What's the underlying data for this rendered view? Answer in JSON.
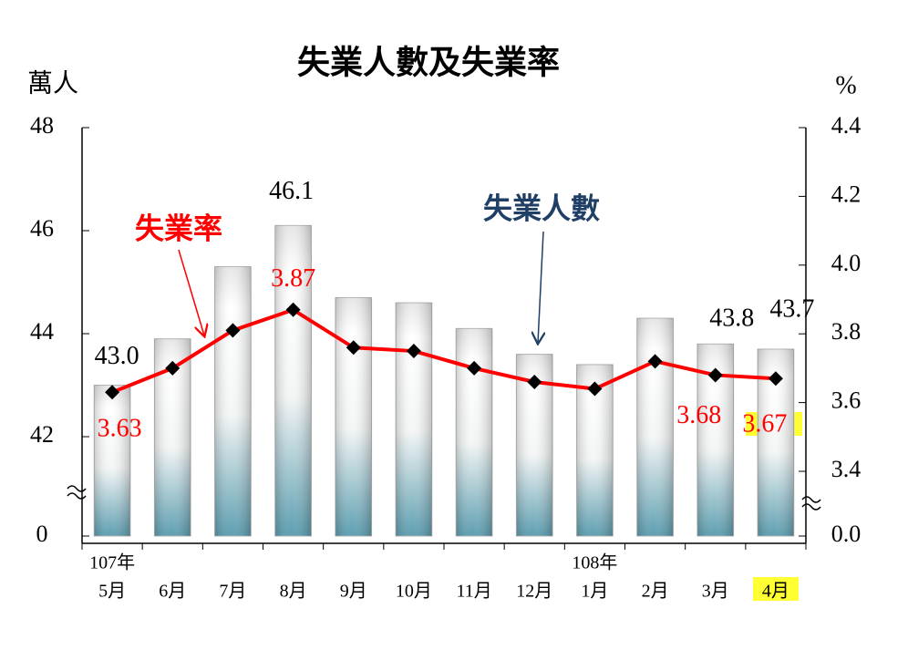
{
  "chart_data": {
    "type": "bar-line",
    "title": "失業人數及失業率",
    "y_label": "萬人",
    "y2_label": "%",
    "categories": [
      "5月",
      "6月",
      "7月",
      "8月",
      "9月",
      "10月",
      "11月",
      "12月",
      "1月",
      "2月",
      "3月",
      "4月"
    ],
    "category_years": [
      "107年",
      null,
      null,
      null,
      null,
      null,
      null,
      null,
      "108年",
      null,
      null,
      null
    ],
    "series": [
      {
        "name": "失業人數",
        "type": "bar",
        "color": "#1f3f66",
        "values": [
          43.0,
          43.9,
          45.3,
          46.1,
          44.7,
          44.6,
          44.1,
          43.6,
          43.4,
          44.3,
          43.8,
          43.7
        ],
        "value_labels": [
          "43.0",
          null,
          null,
          "46.1",
          null,
          null,
          null,
          null,
          null,
          null,
          "43.8",
          "43.7"
        ]
      },
      {
        "name": "失業率",
        "type": "line",
        "axis": "y2",
        "color": "#ff0000",
        "values": [
          3.63,
          3.7,
          3.81,
          3.87,
          3.76,
          3.75,
          3.7,
          3.66,
          3.64,
          3.72,
          3.68,
          3.67
        ],
        "value_labels": [
          "3.63",
          null,
          null,
          "3.87",
          null,
          null,
          null,
          null,
          null,
          null,
          "3.68",
          "3.67"
        ]
      }
    ],
    "ylim": [
      0,
      48
    ],
    "yticks": [
      0,
      42,
      44,
      46,
      48
    ],
    "y2lim": [
      0,
      4.4
    ],
    "y2ticks": [
      {
        "value": 0,
        "label": "0.0"
      },
      3.4,
      3.6,
      3.8,
      {
        "value": 4.0,
        "label": "4.0"
      },
      4.2,
      4.4
    ],
    "axis_break": true
  }
}
